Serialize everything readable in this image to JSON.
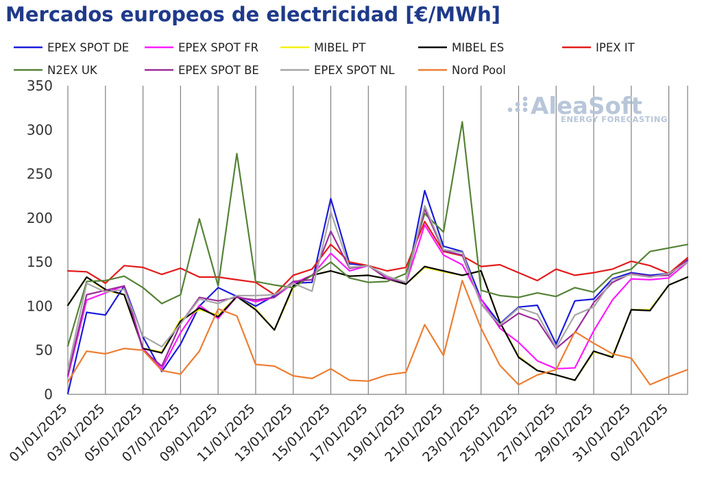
{
  "title": "Mercados europeos de electricidad [€/MWh]",
  "watermark": {
    "brand": "AleaSoft",
    "tagline": "ENERGY FORECASTING"
  },
  "chart_data": {
    "type": "line",
    "title": "Mercados europeos de electricidad [€/MWh]",
    "xlabel": "",
    "ylabel": "",
    "ylim": [
      0,
      350
    ],
    "yticks": [
      0,
      50,
      100,
      150,
      200,
      250,
      300,
      350
    ],
    "xtick_labels": [
      "01/01/2025",
      "03/01/2025",
      "05/01/2025",
      "07/01/2025",
      "09/01/2025",
      "11/01/2025",
      "13/01/2025",
      "15/01/2025",
      "17/01/2025",
      "19/01/2025",
      "21/01/2025",
      "23/01/2025",
      "25/01/2025",
      "27/01/2025",
      "29/01/2025",
      "31/01/2025",
      "02/02/2025"
    ],
    "grid": "vertical",
    "legend_position": "top",
    "x": [
      "01/01/2025",
      "02/01/2025",
      "03/01/2025",
      "04/01/2025",
      "05/01/2025",
      "06/01/2025",
      "07/01/2025",
      "08/01/2025",
      "09/01/2025",
      "10/01/2025",
      "11/01/2025",
      "12/01/2025",
      "13/01/2025",
      "14/01/2025",
      "15/01/2025",
      "16/01/2025",
      "17/01/2025",
      "18/01/2025",
      "19/01/2025",
      "20/01/2025",
      "21/01/2025",
      "22/01/2025",
      "23/01/2025",
      "24/01/2025",
      "25/01/2025",
      "26/01/2025",
      "27/01/2025",
      "28/01/2025",
      "29/01/2025",
      "30/01/2025",
      "31/01/2025",
      "01/02/2025",
      "02/02/2025",
      "03/02/2025"
    ],
    "series": [
      {
        "name": "EPEX SPOT DE",
        "color": "#1a1adb",
        "values": [
          1,
          93,
          90,
          123,
          65,
          26,
          57,
          100,
          121,
          111,
          100,
          112,
          126,
          127,
          222,
          148,
          146,
          134,
          125,
          231,
          168,
          162,
          108,
          80,
          99,
          101,
          57,
          106,
          108,
          131,
          138,
          135,
          137,
          152
        ]
      },
      {
        "name": "EPEX SPOT FR",
        "color": "#ff1aff",
        "values": [
          20,
          107,
          115,
          123,
          52,
          29,
          70,
          101,
          86,
          111,
          105,
          110,
          126,
          135,
          160,
          140,
          146,
          133,
          126,
          192,
          158,
          147,
          108,
          75,
          59,
          38,
          29,
          30,
          72,
          107,
          131,
          130,
          132,
          150
        ]
      },
      {
        "name": "MIBEL PT",
        "color": "#f2f200",
        "values": [
          101,
          133,
          118,
          113,
          52,
          48,
          85,
          96,
          90,
          111,
          97,
          73,
          121,
          135,
          140,
          134,
          135,
          131,
          125,
          144,
          139,
          135,
          140,
          82,
          43,
          27,
          22,
          16,
          48,
          43,
          96,
          96,
          124,
          133
        ]
      },
      {
        "name": "MIBEL ES",
        "color": "#000000",
        "values": [
          101,
          133,
          119,
          113,
          52,
          47,
          83,
          98,
          88,
          111,
          96,
          73,
          123,
          135,
          140,
          134,
          135,
          131,
          125,
          145,
          140,
          135,
          140,
          82,
          42,
          27,
          22,
          16,
          49,
          42,
          96,
          95,
          124,
          133
        ]
      },
      {
        "name": "IPEX IT",
        "color": "#e31a1a",
        "values": [
          140,
          139,
          126,
          146,
          144,
          136,
          143,
          133,
          133,
          130,
          127,
          113,
          135,
          142,
          170,
          150,
          146,
          140,
          144,
          196,
          162,
          157,
          145,
          147,
          138,
          129,
          142,
          135,
          138,
          142,
          151,
          146,
          137,
          155
        ]
      },
      {
        "name": "N2EX UK",
        "color": "#548235",
        "values": [
          55,
          128,
          129,
          134,
          121,
          103,
          113,
          199,
          123,
          273,
          128,
          124,
          121,
          135,
          150,
          132,
          127,
          128,
          137,
          205,
          184,
          309,
          118,
          112,
          110,
          115,
          111,
          121,
          116,
          136,
          142,
          162,
          166,
          170
        ]
      },
      {
        "name": "EPEX SPOT BE",
        "color": "#9b2d9b",
        "values": [
          22,
          113,
          118,
          123,
          50,
          32,
          80,
          110,
          106,
          110,
          107,
          110,
          128,
          130,
          185,
          143,
          146,
          131,
          127,
          210,
          163,
          158,
          103,
          77,
          92,
          84,
          52,
          70,
          104,
          127,
          137,
          134,
          135,
          153
        ]
      },
      {
        "name": "EPEX SPOT NL",
        "color": "#a6a6a6",
        "values": [
          28,
          126,
          116,
          119,
          66,
          54,
          80,
          108,
          103,
          112,
          112,
          113,
          126,
          117,
          207,
          144,
          146,
          134,
          127,
          214,
          164,
          161,
          102,
          79,
          98,
          91,
          53,
          90,
          99,
          130,
          136,
          133,
          137,
          150
        ]
      },
      {
        "name": "Nord Pool",
        "color": "#ed7d31",
        "values": [
          14,
          49,
          46,
          52,
          50,
          27,
          23,
          49,
          97,
          89,
          34,
          32,
          21,
          18,
          29,
          16,
          15,
          22,
          25,
          79,
          44,
          129,
          75,
          33,
          11,
          22,
          28,
          71,
          58,
          46,
          41,
          11,
          20,
          28
        ]
      }
    ]
  }
}
